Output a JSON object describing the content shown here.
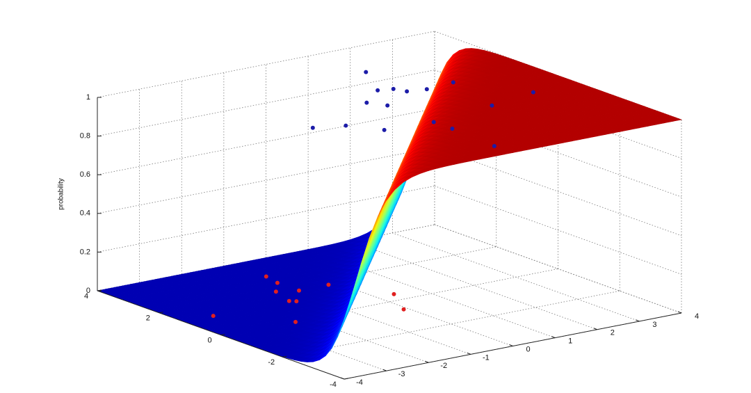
{
  "chart_data": {
    "type": "surface3d",
    "zlabel": "probability",
    "xlim": [
      -4,
      4
    ],
    "xticks": [
      -4,
      -3,
      -2,
      -1,
      0,
      1,
      2,
      3,
      4
    ],
    "ylim": [
      -4,
      4
    ],
    "yticks": [
      -4,
      -2,
      0,
      2,
      4
    ],
    "zlim": [
      0,
      1
    ],
    "zticks": [
      0,
      0.2,
      0.4,
      0.6,
      0.8,
      1
    ],
    "colormap": "jet",
    "grid": true,
    "series": [
      {
        "color": "#1c1ca8",
        "x": [
          -2.0,
          -1.4,
          1.2,
          0.6,
          -0.1,
          0.9,
          1.0,
          -1.0,
          1.4,
          2.1,
          1.7,
          2.9,
          0.0,
          0.1,
          0.1,
          0.1
        ],
        "y": [
          -0.25,
          -0.5,
          2.4,
          1.2,
          0.6,
          1.1,
          0.8,
          -1.2,
          0.7,
          0.8,
          -1.0,
          -0.7,
          -3.4,
          -1.9,
          -1.3,
          0.2
        ],
        "z": [
          1,
          1,
          1,
          1,
          1,
          1,
          1,
          1,
          1,
          1,
          1,
          1,
          1,
          1,
          1,
          1
        ]
      },
      {
        "color": "#e02020",
        "x": [
          -0.8,
          -0.9,
          -1.3,
          -0.9,
          -1.5,
          -1.4,
          -3.3,
          -2.3,
          0.4,
          -0.1,
          -0.2
        ],
        "y": [
          2.9,
          2.4,
          1.9,
          1.7,
          1.2,
          1.1,
          1.2,
          -0.1,
          0.4,
          -0.6,
          1.7
        ],
        "z": [
          0,
          0,
          0,
          0,
          0,
          0,
          0,
          0,
          0,
          0,
          0
        ]
      }
    ]
  }
}
